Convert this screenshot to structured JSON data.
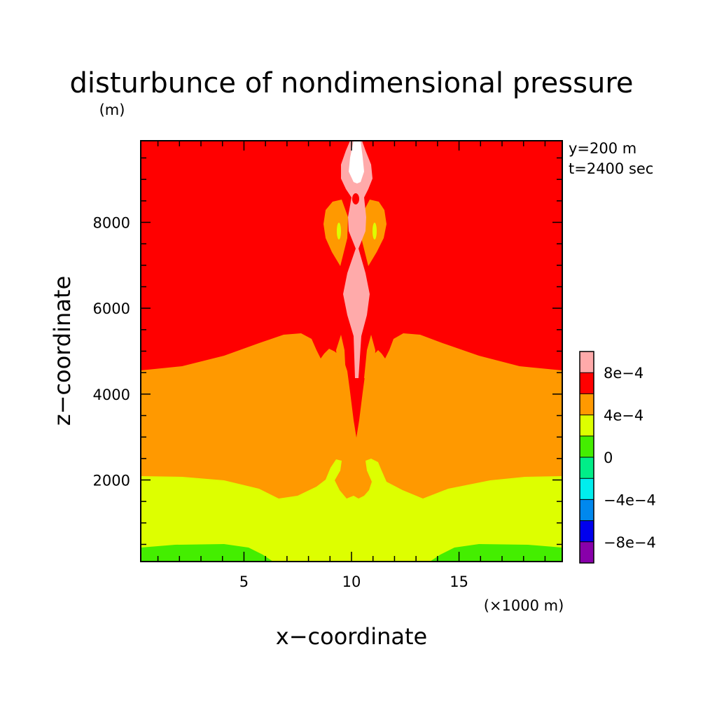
{
  "chart_data": {
    "type": "heatmap",
    "title": "disturbunce of nondimensional pressure",
    "y_unit": "(m)",
    "xlabel": "x−coordinate",
    "ylabel": "z−coordinate",
    "x_unit": "(×1000 m)",
    "info": [
      "y=200 m",
      "t=2400 sec"
    ],
    "xlim": [
      0.2,
      19.8
    ],
    "ylim": [
      100,
      9900
    ],
    "x_ticks": [
      5,
      10,
      15
    ],
    "x_tick_labels": [
      "5",
      "10",
      "15"
    ],
    "y_ticks": [
      2000,
      4000,
      6000,
      8000
    ],
    "y_tick_labels": [
      "2000",
      "4000",
      "6000",
      "8000"
    ],
    "colorbar": {
      "levels": [
        {
          "color": "#8800aa"
        },
        {
          "color": "#0000ee"
        },
        {
          "color": "#0088ee"
        },
        {
          "color": "#00eeee"
        },
        {
          "color": "#00ee88"
        },
        {
          "color": "#44ee00"
        },
        {
          "color": "#ddff00"
        },
        {
          "color": "#ff9900"
        },
        {
          "color": "#ff0000"
        },
        {
          "color": "#ffaaaa"
        }
      ],
      "labels": [
        "-8e−4",
        "−4e−4",
        "0",
        "4e−4",
        "8e−4"
      ],
      "label_display": [
        "−8e−4",
        "−4e−4",
        "0",
        "4e−4",
        "8e−4"
      ]
    },
    "fill_colors": {
      "green": "#44ee00",
      "yellow": "#ddff00",
      "orange": "#ff9900",
      "red": "#ff0000",
      "pink": "#ffaaaa",
      "white": "#ffffff"
    }
  }
}
